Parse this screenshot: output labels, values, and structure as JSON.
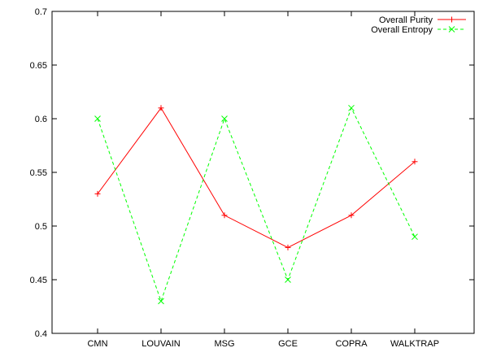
{
  "chart_data": {
    "type": "line",
    "title": "",
    "xlabel": "",
    "ylabel": "",
    "categories": [
      "CMN",
      "LOUVAIN",
      "MSG",
      "GCE",
      "COPRA",
      "WALKTRAP"
    ],
    "ylim": [
      0.4,
      0.7
    ],
    "yticks": [
      "0.4",
      "0.45",
      "0.5",
      "0.55",
      "0.6",
      "0.65",
      "0.7"
    ],
    "grid": false,
    "legend_position": "top-right",
    "series": [
      {
        "name": "Overall Purity",
        "color": "#ff0000",
        "dash": "solid",
        "marker": "plus",
        "values": [
          0.53,
          0.61,
          0.51,
          0.48,
          0.51,
          0.56
        ]
      },
      {
        "name": "Overall Entropy",
        "color": "#00ff00",
        "dash": "dashed",
        "marker": "cross",
        "values": [
          0.6,
          0.43,
          0.6,
          0.45,
          0.61,
          0.49
        ]
      }
    ]
  }
}
